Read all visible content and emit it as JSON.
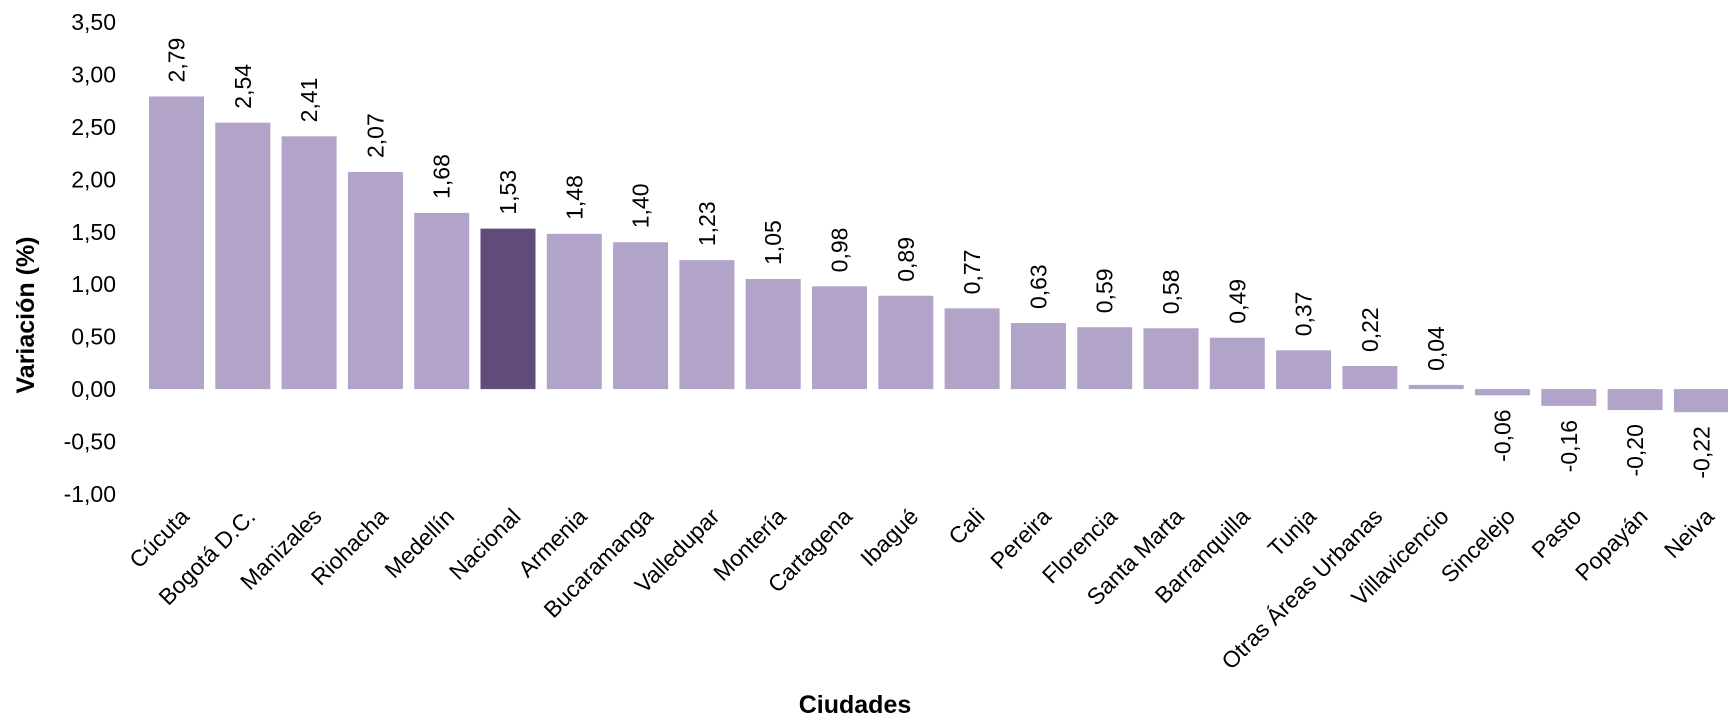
{
  "chart_data": {
    "type": "bar",
    "xlabel": "Ciudades",
    "ylabel": "Variación (%)",
    "ylim": [
      -1.0,
      3.5
    ],
    "ytick_step": 0.5,
    "yticks": [
      "3,50",
      "3,00",
      "2,50",
      "2,00",
      "1,50",
      "1,00",
      "0,50",
      "0,00",
      "-0,50",
      "-1,00"
    ],
    "grid": false,
    "categories": [
      "Cúcuta",
      "Bogotá D.C.",
      "Manizales",
      "Riohacha",
      "Medellín",
      "Nacional",
      "Armenia",
      "Bucaramanga",
      "Valledupar",
      "Montería",
      "Cartagena",
      "Ibagué",
      "Cali",
      "Pereira",
      "Florencia",
      "Santa Marta",
      "Barranquilla",
      "Tunja",
      "Otras Áreas Urbanas",
      "Villavicencio",
      "Sincelejo",
      "Pasto",
      "Popayán",
      "Neiva"
    ],
    "values": [
      2.79,
      2.54,
      2.41,
      2.07,
      1.68,
      1.53,
      1.48,
      1.4,
      1.23,
      1.05,
      0.98,
      0.89,
      0.77,
      0.63,
      0.59,
      0.58,
      0.49,
      0.37,
      0.22,
      0.04,
      -0.06,
      -0.16,
      -0.2,
      -0.22
    ],
    "data_labels": [
      "2,79",
      "2,54",
      "2,41",
      "2,07",
      "1,68",
      "1,53",
      "1,48",
      "1,40",
      "1,23",
      "1,05",
      "0,98",
      "0,89",
      "0,77",
      "0,63",
      "0,59",
      "0,58",
      "0,49",
      "0,37",
      "0,22",
      "0,04",
      "-0,06",
      "-0,16",
      "-0,20",
      "-0,22"
    ],
    "highlight_category": "Nacional",
    "colors": {
      "bar": "#b2a3c9",
      "highlight": "#614b7a"
    }
  }
}
